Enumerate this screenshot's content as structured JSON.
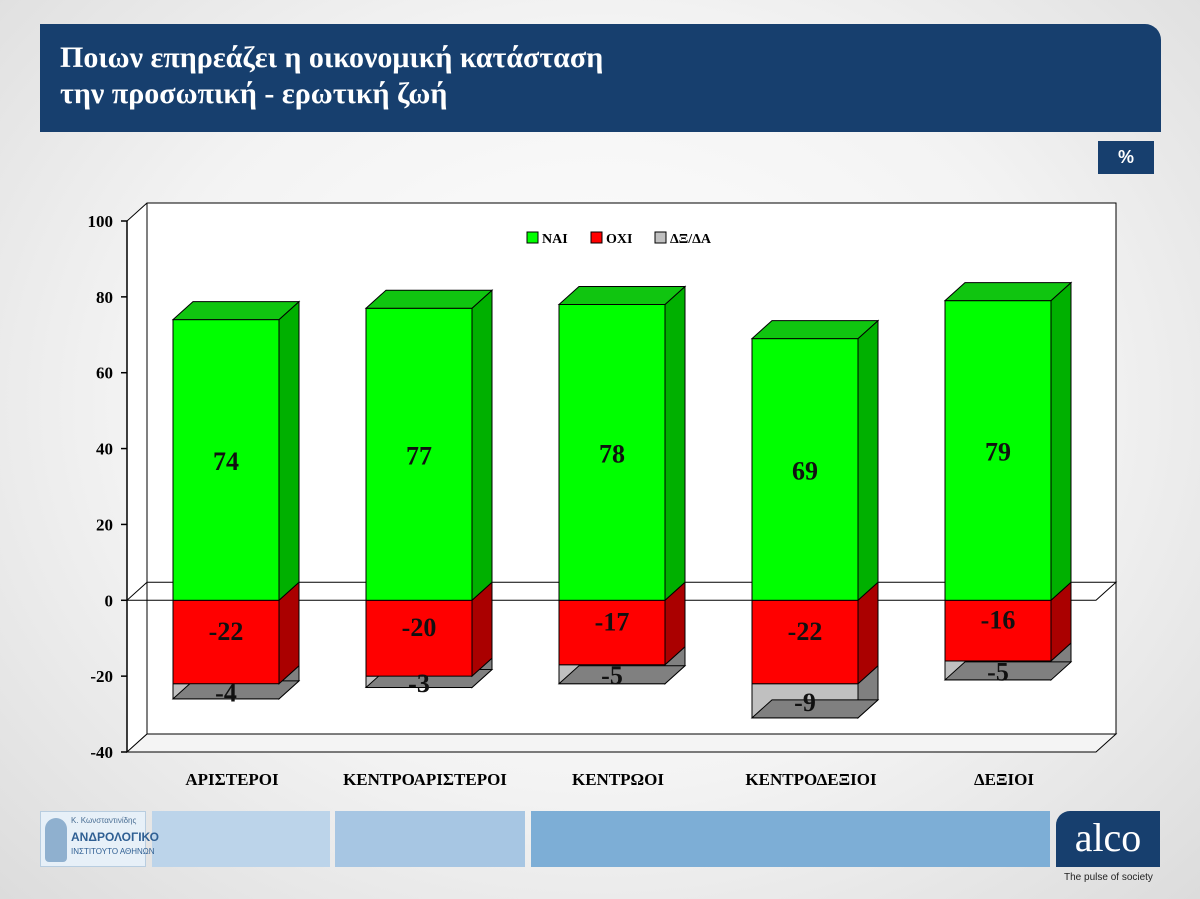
{
  "header": {
    "title_line1": "Ποιων επηρεάζει η οικονομική κατάσταση",
    "title_line2": "την προσωπική - ερωτική ζωή"
  },
  "unit_badge": "%",
  "chart_data": {
    "type": "bar",
    "stacked": true,
    "three_d": true,
    "categories": [
      "ΑΡΙΣΤΕΡΟΙ",
      "ΚΕΝΤΡΟΑΡΙΣΤΕΡΟΙ",
      "ΚΕΝΤΡΩΟΙ",
      "ΚΕΝΤΡΟΔΕΞΙΟΙ",
      "ΔΕΞΙΟΙ"
    ],
    "series": [
      {
        "name": "ΝΑΙ",
        "values": [
          74,
          77,
          78,
          69,
          79
        ],
        "color": "#00ff00",
        "side_color": "#00b000",
        "top_color": "#10c510"
      },
      {
        "name": "ΟΧΙ",
        "values": [
          -22,
          -20,
          -17,
          -22,
          -16
        ],
        "color": "#ff0000",
        "side_color": "#aa0000",
        "top_color": "#c00000"
      },
      {
        "name": "ΔΞ/ΔΑ",
        "values": [
          -4,
          -3,
          -5,
          -9,
          -5
        ],
        "color": "#c0c0c0",
        "side_color": "#808080",
        "top_color": "#a0a0a0"
      }
    ],
    "ylim": [
      -40,
      100
    ],
    "yticks": [
      100,
      80,
      60,
      40,
      20,
      0,
      -20,
      -40
    ],
    "legend_position": "top-center",
    "grid": false
  },
  "footer": {
    "org_line1": "Κ. Κωνσταντινίδης",
    "org_line2": "ΑΝΔΡΟΛΟΓΙΚΟ",
    "org_line3": "ΙΝΣΤΙΤΟΥΤΟ ΑΘΗΝΩΝ",
    "brand": "alco",
    "tagline": "The pulse of society",
    "strip_colors": [
      "#bcd4ea",
      "#a7c6e3",
      "#7daed6"
    ]
  }
}
